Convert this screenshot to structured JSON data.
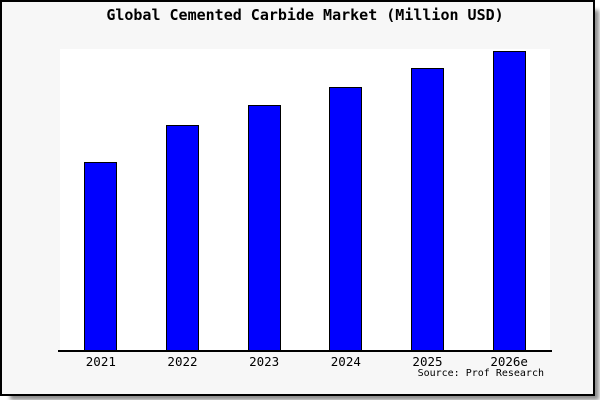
{
  "figure": {
    "title": "Global Cemented Carbide Market (Million USD)",
    "source_note": "Source: Prof Research"
  },
  "colors": {
    "figure_background": "#f7f7f7",
    "plot_background": "#ffffff",
    "figure_border": "#000000",
    "axis_line": "#000000",
    "bar_fill": "#0000ff",
    "bar_border": "#000000",
    "text": "#000000",
    "shadow": "#999999"
  },
  "chart_data": {
    "type": "bar",
    "title": "Global Cemented Carbide Market (Million USD)",
    "xlabel": "",
    "ylabel": "",
    "categories": [
      "2021",
      "2022",
      "2023",
      "2024",
      "2025",
      "2026e"
    ],
    "values_relative_height_pct": [
      62.5,
      74.9,
      81.3,
      87.4,
      93.6,
      99.5
    ],
    "values_unit": "Million USD",
    "y_axis_tick_labels_visible": false,
    "gridlines": false,
    "legend_visible": false,
    "source_note": "Source: Prof Research"
  }
}
